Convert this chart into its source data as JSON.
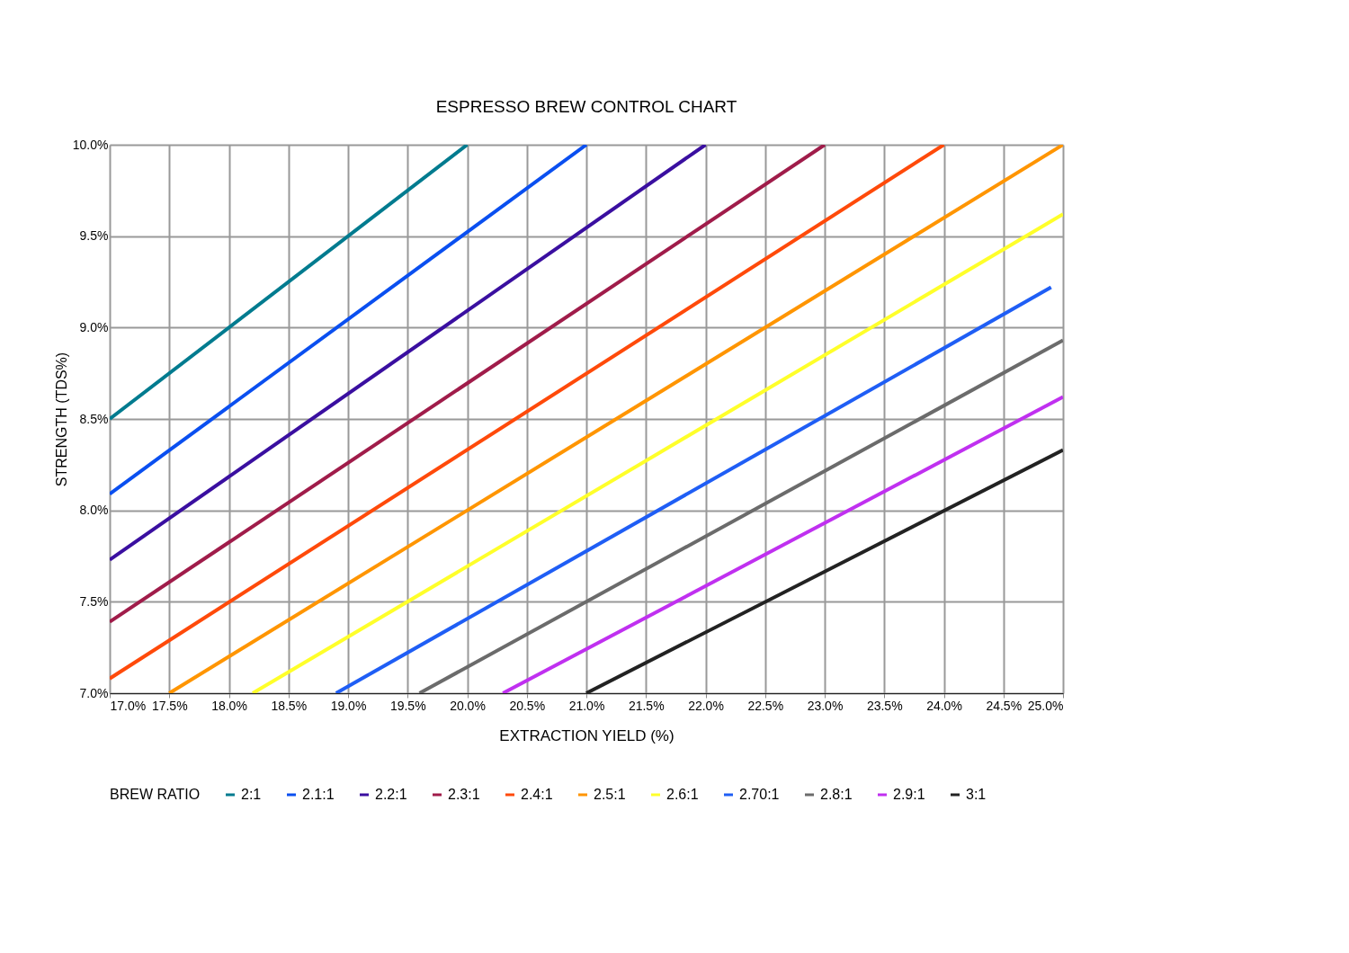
{
  "chart_data": {
    "type": "line",
    "title": "ESPRESSO BREW CONTROL CHART",
    "xlabel": "EXTRACTION YIELD (%)",
    "ylabel": "STRENGTH (TDS%)",
    "legend_title": "BREW RATIO",
    "xlim": [
      17,
      25
    ],
    "ylim": [
      7,
      10
    ],
    "xticks": [
      {
        "value": 17,
        "label": "17.0%"
      },
      {
        "value": 17.5,
        "label": "17.5%"
      },
      {
        "value": 18,
        "label": "18.0%"
      },
      {
        "value": 18.5,
        "label": "18.5%"
      },
      {
        "value": 19,
        "label": "19.0%"
      },
      {
        "value": 19.5,
        "label": "19.5%"
      },
      {
        "value": 20,
        "label": "20.0%"
      },
      {
        "value": 20.5,
        "label": "20.5%"
      },
      {
        "value": 21,
        "label": "21.0%"
      },
      {
        "value": 21.5,
        "label": "21.5%"
      },
      {
        "value": 22,
        "label": "22.0%"
      },
      {
        "value": 22.5,
        "label": "22.5%"
      },
      {
        "value": 23,
        "label": "23.0%"
      },
      {
        "value": 23.5,
        "label": "23.5%"
      },
      {
        "value": 24,
        "label": "24.0%"
      },
      {
        "value": 24.5,
        "label": "24.5%"
      },
      {
        "value": 25,
        "label": "25.0%"
      }
    ],
    "yticks": [
      {
        "value": 7,
        "label": "7.0%"
      },
      {
        "value": 7.5,
        "label": "7.5%"
      },
      {
        "value": 8,
        "label": "8.0%"
      },
      {
        "value": 8.5,
        "label": "8.5%"
      },
      {
        "value": 9,
        "label": "9.0%"
      },
      {
        "value": 9.5,
        "label": "9.5%"
      },
      {
        "value": 10,
        "label": "10.0%"
      }
    ],
    "grid": true,
    "legend": "bottom",
    "marker": "none",
    "line_style": "solid",
    "series": [
      {
        "name": "2:1",
        "color": "#007b8f",
        "x": [
          17,
          20
        ],
        "values": [
          8.5,
          10
        ]
      },
      {
        "name": "2.1:1",
        "color": "#0a4ff0",
        "x": [
          17,
          21
        ],
        "values": [
          8.09,
          10
        ]
      },
      {
        "name": "2.2:1",
        "color": "#3a0fa0",
        "x": [
          17,
          22
        ],
        "values": [
          7.73,
          10
        ]
      },
      {
        "name": "2.3:1",
        "color": "#a01c4a",
        "x": [
          17,
          23
        ],
        "values": [
          7.39,
          10
        ]
      },
      {
        "name": "2.4:1",
        "color": "#ff4a0a",
        "x": [
          17,
          24
        ],
        "values": [
          7.08,
          10
        ]
      },
      {
        "name": "2.5:1",
        "color": "#ff9500",
        "x": [
          17.5,
          25
        ],
        "values": [
          7,
          10
        ]
      },
      {
        "name": "2.6:1",
        "color": "#ffff2a",
        "x": [
          18.2,
          25
        ],
        "values": [
          7,
          9.62
        ]
      },
      {
        "name": "2.70:1",
        "color": "#1f5ef5",
        "x": [
          18.9,
          24.9
        ],
        "values": [
          7,
          9.22
        ]
      },
      {
        "name": "2.8:1",
        "color": "#6b6b6b",
        "x": [
          19.6,
          25
        ],
        "values": [
          7,
          8.93
        ]
      },
      {
        "name": "2.9:1",
        "color": "#c030f0",
        "x": [
          20.3,
          25
        ],
        "values": [
          7,
          8.62
        ]
      },
      {
        "name": "3:1",
        "color": "#222222",
        "x": [
          21,
          25
        ],
        "values": [
          7,
          8.33
        ]
      }
    ]
  }
}
